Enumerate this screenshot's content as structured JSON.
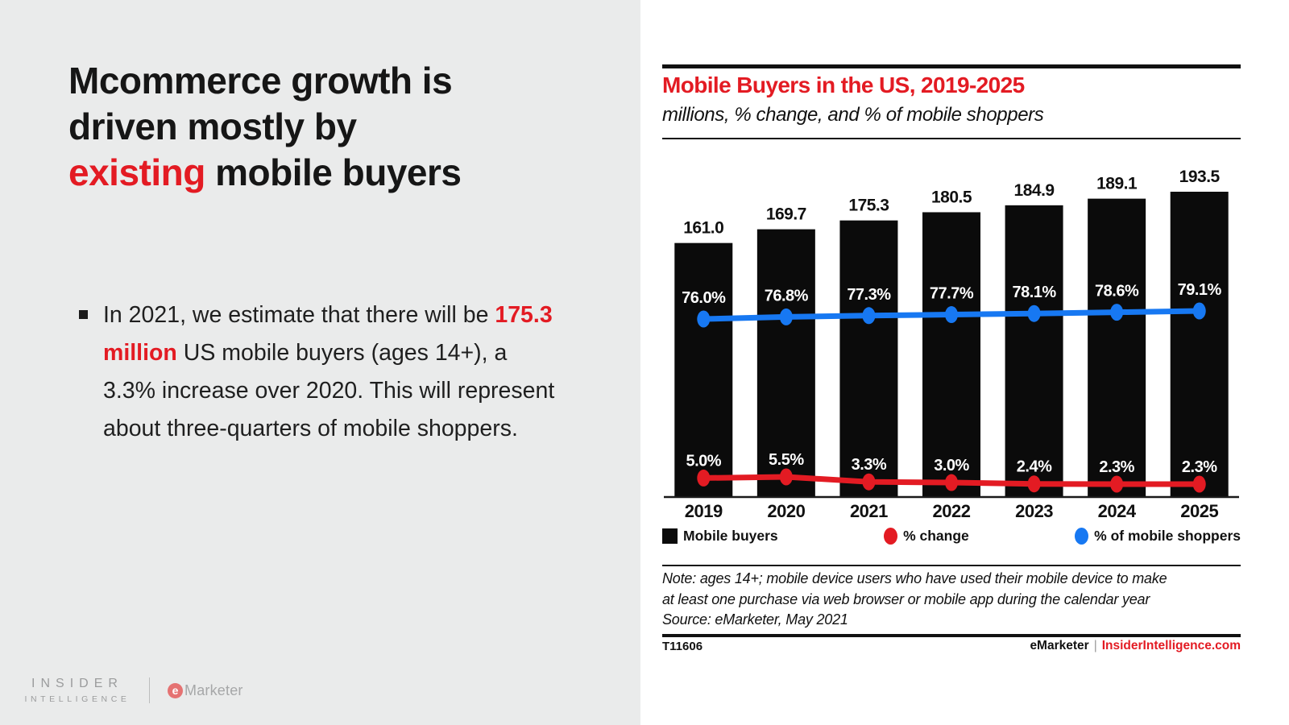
{
  "colors": {
    "accent_red": "#e31b23",
    "line_blue": "#1778f2",
    "bar_black": "#0b0b0b",
    "panel_gray": "#eaebeb"
  },
  "slide": {
    "title": {
      "line1": "Mcommerce growth is",
      "line2": "driven mostly by",
      "line3_highlight": "existing",
      "line3_rest": " mobile buyers"
    },
    "bullet": {
      "part1": "In 2021, we estimate that there will be ",
      "highlight": "175.3 million",
      "part3": " US mobile buyers (ages 14+), a 3.3% increase over 2020. This will represent about three-quarters of mobile shoppers."
    }
  },
  "brand": {
    "insider_line1": "INSIDER",
    "insider_line2": "INTELLIGENCE",
    "emarketer_e": "e",
    "emarketer_rest": "Marketer"
  },
  "chart_data": {
    "type": "bar+line",
    "title": "Mobile Buyers in the US, 2019-2025",
    "subtitle": "millions, % change, and % of mobile shoppers",
    "categories": [
      "2019",
      "2020",
      "2021",
      "2022",
      "2023",
      "2024",
      "2025"
    ],
    "series": [
      {
        "name": "Mobile buyers",
        "type": "bar",
        "color": "#0b0b0b",
        "values": [
          161.0,
          169.7,
          175.3,
          180.5,
          184.9,
          189.1,
          193.5
        ],
        "labels": [
          "161.0",
          "169.7",
          "175.3",
          "180.5",
          "184.9",
          "189.1",
          "193.5"
        ]
      },
      {
        "name": "% change",
        "type": "line",
        "color": "#e31b23",
        "values": [
          5.0,
          5.5,
          3.3,
          3.0,
          2.4,
          2.3,
          2.3
        ],
        "labels": [
          "5.0%",
          "5.5%",
          "3.3%",
          "3.0%",
          "2.4%",
          "2.3%",
          "2.3%"
        ]
      },
      {
        "name": "% of mobile shoppers",
        "type": "line",
        "color": "#1778f2",
        "values": [
          76.0,
          76.8,
          77.3,
          77.7,
          78.1,
          78.6,
          79.1
        ],
        "labels": [
          "76.0%",
          "76.8%",
          "77.3%",
          "77.7%",
          "78.1%",
          "78.6%",
          "79.1%"
        ]
      }
    ],
    "bar_axis": {
      "min": 0,
      "max": 193.5
    },
    "grid": false,
    "legend_position": "bottom",
    "note_line1": "Note: ages 14+; mobile device users who have used their mobile device to make",
    "note_line2": "at least one purchase via web browser or mobile app during the calendar year",
    "source": "Source: eMarketer, May 2021",
    "chart_id": "T11606"
  },
  "footer": {
    "brand": "eMarketer",
    "separator": "|",
    "site": "InsiderIntelligence.com"
  }
}
